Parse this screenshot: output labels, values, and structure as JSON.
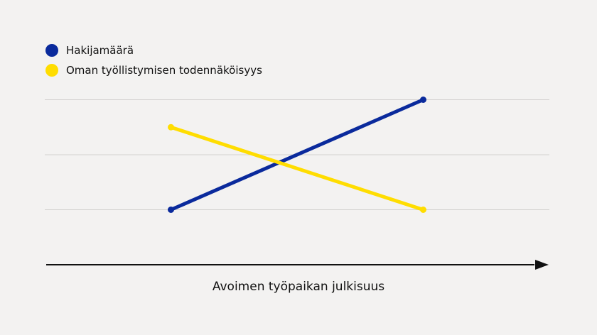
{
  "chart_data": {
    "type": "line",
    "title": "",
    "xlabel": "Avoimen työpaikan julkisuus",
    "ylabel": "",
    "x": [
      0,
      1
    ],
    "xlim": [
      -0.5,
      1.5
    ],
    "ylim": [
      0,
      3.6
    ],
    "grid": true,
    "gridlines": [
      1,
      2,
      3
    ],
    "legend_position": "top-left",
    "series": [
      {
        "name": "Hakijamäärä",
        "color": "#0a2a9c",
        "values": [
          1,
          3
        ]
      },
      {
        "name": "Oman työllistymisen todennäköisyys",
        "color": "#ffdd00",
        "values": [
          2.5,
          1
        ]
      }
    ]
  }
}
